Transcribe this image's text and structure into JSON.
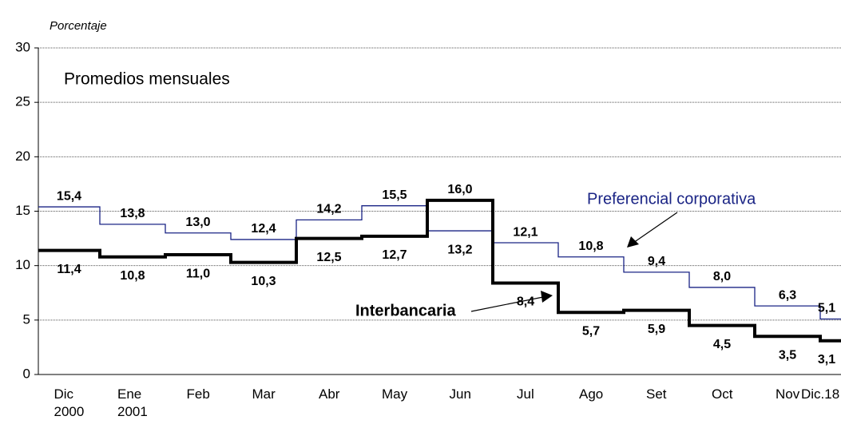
{
  "chart_data": {
    "type": "line",
    "subtitle": "Porcentaje",
    "title": "Promedios mensuales",
    "categories": [
      "Dic\n2000",
      "Ene\n2001",
      "Feb",
      "Mar",
      "Abr",
      "May",
      "Jun",
      "Jul",
      "Ago",
      "Set",
      "Oct",
      "Nov",
      "Dic.18"
    ],
    "series": [
      {
        "name": "Preferencial corporativa",
        "color": "#1a2485",
        "values": [
          15.4,
          13.8,
          13.0,
          12.4,
          14.2,
          15.5,
          13.2,
          12.1,
          10.8,
          9.4,
          8.0,
          6.3,
          5.1
        ],
        "value_labels": [
          "15,4",
          "13,8",
          "13,0",
          "12,4",
          "14,2",
          "15,5",
          "13,2",
          "12,1",
          "10,8",
          "9,4",
          "8,0",
          "6,3",
          "5,1"
        ]
      },
      {
        "name": "Interbancaria",
        "color": "#000000",
        "values": [
          11.4,
          10.8,
          11.0,
          10.3,
          12.5,
          12.7,
          16.0,
          8.4,
          5.7,
          5.9,
          4.5,
          3.5,
          3.1
        ],
        "value_labels": [
          "11,4",
          "10,8",
          "11,0",
          "10,3",
          "12,5",
          "12,7",
          "16,0",
          "8,4",
          "5,7",
          "5,9",
          "4,5",
          "3,5",
          "3,1"
        ]
      }
    ],
    "ylim": [
      0,
      30
    ],
    "yticks": [
      0,
      5,
      10,
      15,
      20,
      25,
      30
    ],
    "grid": true,
    "step": true
  }
}
